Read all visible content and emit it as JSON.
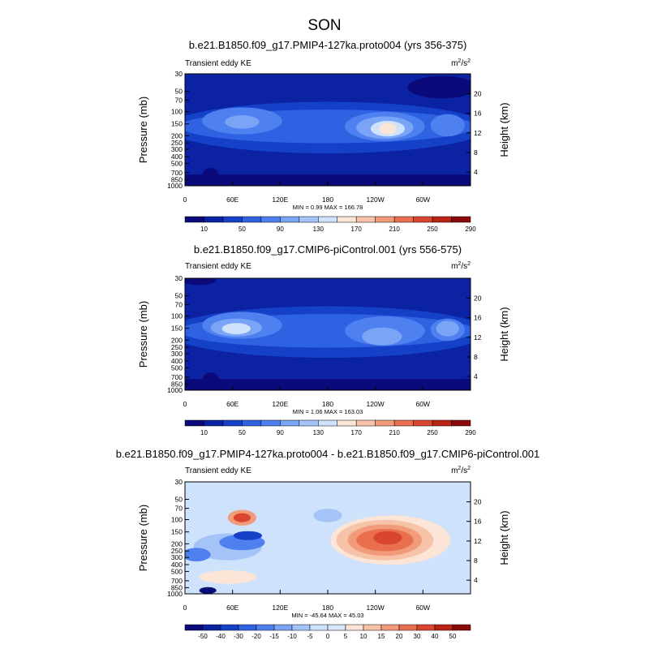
{
  "figure": {
    "title": "SON"
  },
  "chart_data": [
    {
      "type": "heatmap",
      "title": "b.e21.B1850.f09_g17.PMIP4-127ka.proto004 (yrs 356-375)",
      "left_label": "Transient eddy KE",
      "units_base": "m",
      "units_exp1": "2",
      "units_slash": "/s",
      "units_exp2": "2",
      "ylabel": "Pressure (mb)",
      "y2label": "Height (km)",
      "x_ticks": [
        "0",
        "60E",
        "120E",
        "180",
        "120W",
        "60W"
      ],
      "y_ticks": [
        "30",
        "50",
        "70",
        "100",
        "150",
        "200",
        "250",
        "300",
        "400",
        "500",
        "700",
        "850",
        "1000"
      ],
      "y2_ticks": [
        "4",
        "8",
        "12",
        "16",
        "20"
      ],
      "stats": "MIN =   0.99  MAX = 166.78",
      "colorbar_labels": [
        "10",
        "50",
        "90",
        "130",
        "170",
        "210",
        "250",
        "290"
      ],
      "colorbar_colors": [
        "#0a0a7a",
        "#0b23a3",
        "#1540c8",
        "#2e62e3",
        "#4f80f0",
        "#7aa4f5",
        "#a4c4f8",
        "#cfe2fb",
        "#fce4d6",
        "#f7c3a8",
        "#f29b7a",
        "#ea6f4f",
        "#d9452e",
        "#b82314",
        "#8a0a0a"
      ],
      "stat_min": 0.99,
      "stat_max": 166.78
    },
    {
      "type": "heatmap",
      "title": "b.e21.B1850.f09_g17.CMIP6-piControl.001 (yrs 556-575)",
      "left_label": "Transient eddy KE",
      "units_base": "m",
      "units_exp1": "2",
      "units_slash": "/s",
      "units_exp2": "2",
      "ylabel": "Pressure (mb)",
      "y2label": "Height (km)",
      "x_ticks": [
        "0",
        "60E",
        "120E",
        "180",
        "120W",
        "60W"
      ],
      "y_ticks": [
        "30",
        "50",
        "70",
        "100",
        "150",
        "200",
        "250",
        "300",
        "400",
        "500",
        "700",
        "850",
        "1000"
      ],
      "y2_ticks": [
        "4",
        "8",
        "12",
        "16",
        "20"
      ],
      "stats": "MIN =   1.06  MAX = 163.03",
      "colorbar_labels": [
        "10",
        "50",
        "90",
        "130",
        "170",
        "210",
        "250",
        "290"
      ],
      "colorbar_colors": [
        "#0a0a7a",
        "#0b23a3",
        "#1540c8",
        "#2e62e3",
        "#4f80f0",
        "#7aa4f5",
        "#a4c4f8",
        "#cfe2fb",
        "#fce4d6",
        "#f7c3a8",
        "#f29b7a",
        "#ea6f4f",
        "#d9452e",
        "#b82314",
        "#8a0a0a"
      ],
      "stat_min": 1.06,
      "stat_max": 163.03
    },
    {
      "type": "heatmap",
      "title": "b.e21.B1850.f09_g17.PMIP4-127ka.proto004 - b.e21.B1850.f09_g17.CMIP6-piControl.001",
      "left_label": "Transient eddy KE",
      "units_base": "m",
      "units_exp1": "2",
      "units_slash": "/s",
      "units_exp2": "2",
      "ylabel": "Pressure (mb)",
      "y2label": "Height (km)",
      "x_ticks": [
        "0",
        "60E",
        "120E",
        "180",
        "120W",
        "60W"
      ],
      "y_ticks": [
        "30",
        "50",
        "70",
        "100",
        "150",
        "200",
        "250",
        "300",
        "400",
        "500",
        "700",
        "850",
        "1000"
      ],
      "y2_ticks": [
        "4",
        "8",
        "12",
        "16",
        "20"
      ],
      "stats": "MIN = -45.64  MAX = 45.03",
      "colorbar_labels": [
        "-50",
        "-40",
        "-30",
        "-20",
        "-15",
        "-10",
        "-5",
        "0",
        "5",
        "10",
        "15",
        "20",
        "30",
        "40",
        "50"
      ],
      "colorbar_colors": [
        "#0a0a7a",
        "#0b23a3",
        "#1540c8",
        "#2e62e3",
        "#4f80f0",
        "#7aa4f5",
        "#a4c4f8",
        "#cfe2fb",
        "#d6e6fb",
        "#fce4d6",
        "#f7c3a8",
        "#f29b7a",
        "#ea6f4f",
        "#d9452e",
        "#b82314",
        "#8a0a0a"
      ],
      "stat_min": -45.64,
      "stat_max": 45.03
    }
  ]
}
